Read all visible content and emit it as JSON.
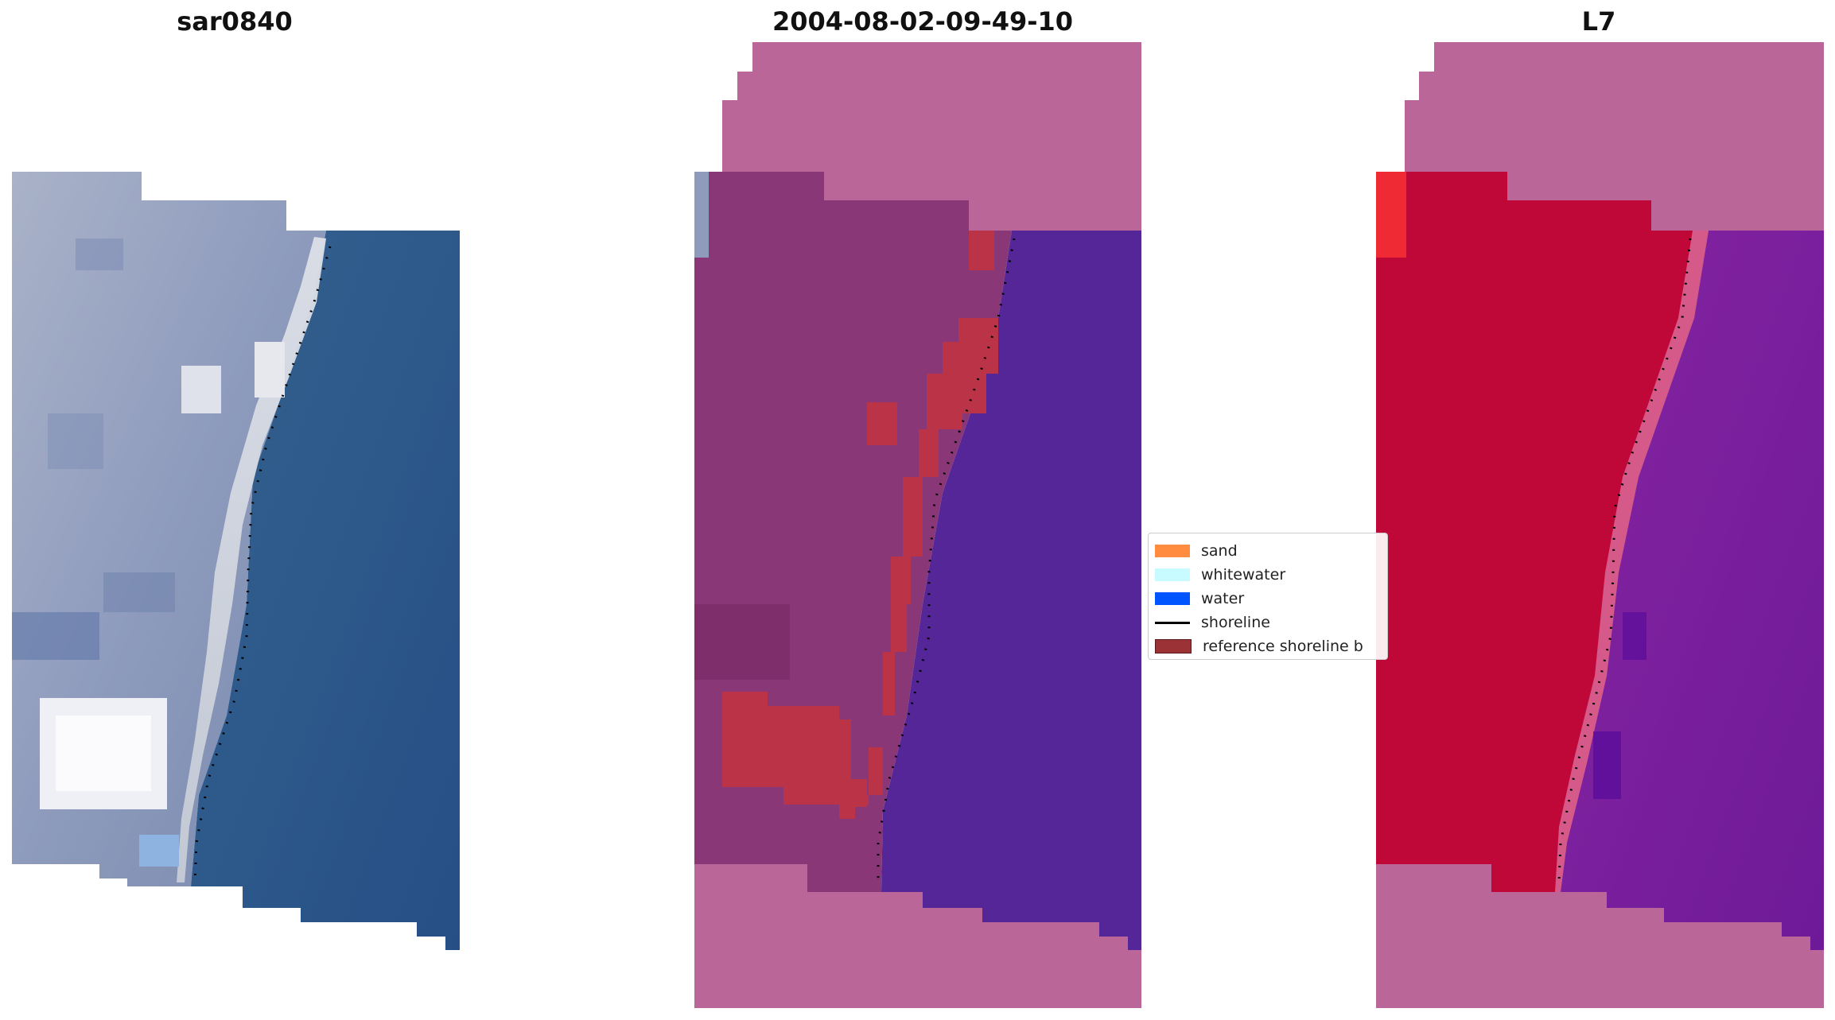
{
  "panels": [
    {
      "title": "sar0840"
    },
    {
      "title": "2004-08-02-09-49-10"
    },
    {
      "title": "L7"
    }
  ],
  "legend": {
    "items": [
      {
        "label": "sand",
        "color": "#ff8c3f",
        "kind": "patch"
      },
      {
        "label": "whitewater",
        "color": "#c8fbff",
        "kind": "patch"
      },
      {
        "label": "water",
        "color": "#0055ff",
        "kind": "patch"
      },
      {
        "label": "shoreline",
        "color": "#000000",
        "kind": "line"
      },
      {
        "label": "reference shoreline b",
        "color": "#9b3236",
        "kind": "patch"
      }
    ]
  },
  "colors": {
    "nodata_mask": "#bb6699",
    "water_rgb": "#2c5a8c",
    "land_rgb": "#95a3c2",
    "water_classified": "#552698",
    "land_classified": "#8a3777",
    "buffer": "#bb3347",
    "ndwi_land": "#c00838",
    "ndwi_water": "#7a1f9c"
  }
}
